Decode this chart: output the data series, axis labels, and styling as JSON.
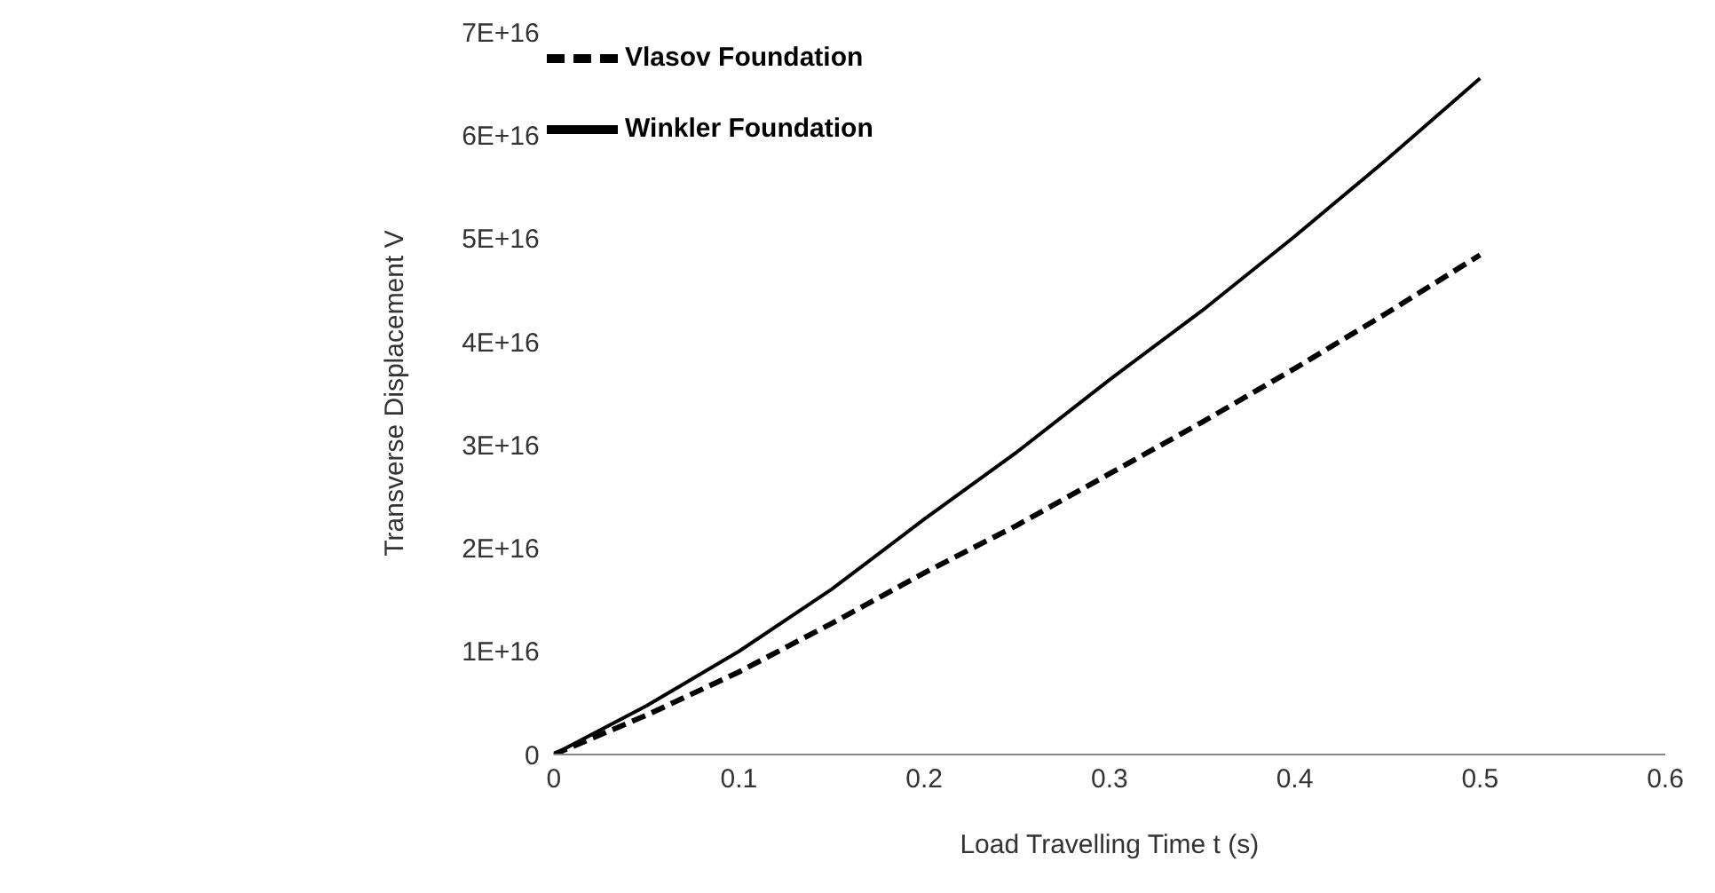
{
  "chart_data": {
    "type": "line",
    "xlabel": "Load Travelling Time t (s)",
    "ylabel": "Transverse Displacement V",
    "x": [
      0,
      0.05,
      0.1,
      0.15,
      0.2,
      0.25,
      0.3,
      0.35,
      0.4,
      0.45,
      0.5
    ],
    "series": [
      {
        "name": "Vlasov Foundation",
        "color": "#000000",
        "line_style": "dashed",
        "values": [
          0,
          3800000000000000.0,
          8000000000000000.0,
          1.27e+16,
          1.76e+16,
          2.22e+16,
          2.72e+16,
          3.22e+16,
          3.74e+16,
          4.28e+16,
          4.84e+16
        ]
      },
      {
        "name": "Winkler Foundation",
        "color": "#000000",
        "line_style": "solid",
        "values": [
          0,
          4700000000000000.0,
          1e+16,
          1.6e+16,
          2.28e+16,
          2.93e+16,
          3.63e+16,
          4.3e+16,
          5.02e+16,
          5.77e+16,
          6.55e+16
        ]
      }
    ],
    "xlim": [
      0,
      0.6
    ],
    "xticks": [
      0,
      0.1,
      0.2,
      0.3,
      0.4,
      0.5,
      0.6
    ],
    "ylim": [
      0,
      7e+16
    ],
    "yticks": [
      0,
      {
        "value": 1e+16,
        "label": "1E+16"
      },
      {
        "value": 2e+16,
        "label": "2E+16"
      },
      {
        "value": 3e+16,
        "label": "3E+16"
      },
      {
        "value": 4e+16,
        "label": "4E+16"
      },
      {
        "value": 5e+16,
        "label": "5E+16"
      },
      {
        "value": 6e+16,
        "label": "6E+16"
      },
      {
        "value": 7e+16,
        "label": "7E+16"
      }
    ],
    "grid": false,
    "legend": "top left",
    "marker": "none"
  }
}
